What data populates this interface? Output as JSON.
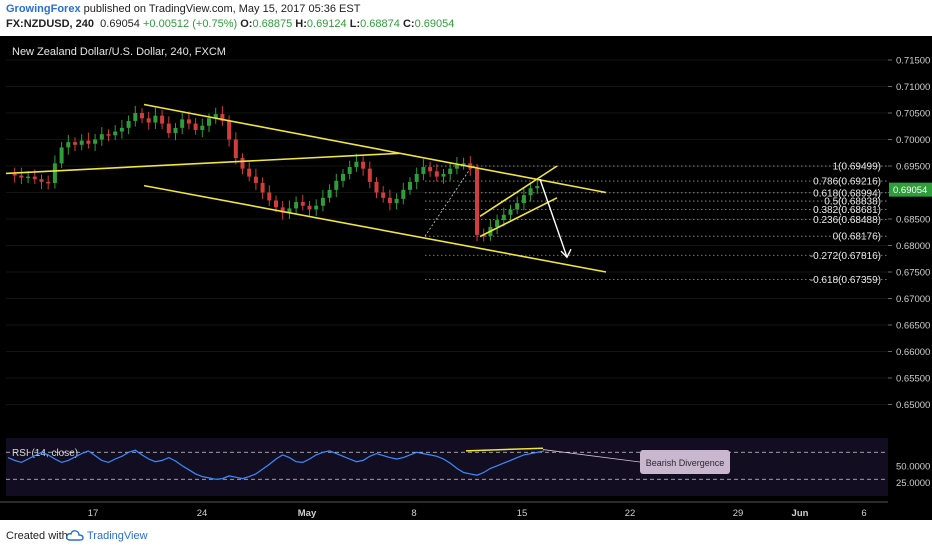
{
  "header": {
    "author": "GrowingForex",
    "published_text": " published on TradingView.com, May 15, 2017 05:36 EST",
    "symbol": "FX:NZDUSD, 240",
    "last": "0.69054",
    "change": "+0.00512 (+0.75%)",
    "o_label": "O:",
    "o_value": "0.68875",
    "h_label": "H:",
    "h_value": "0.69124",
    "l_label": "L:",
    "l_value": "0.68874",
    "c_label": "C:",
    "c_value": "0.69054"
  },
  "footer": {
    "created_with": "Created with",
    "brand": "TradingView"
  },
  "colors": {
    "background": "#000000",
    "up": "#2e9e3a",
    "down": "#d23c3c",
    "trendline": "#f0e53a",
    "rsi": "#3a8cff",
    "price_tag": "#2e9e3a"
  },
  "chart_data": {
    "type": "candlestick",
    "title": "New Zealand Dollar/U.S. Dollar, 240, FXCM",
    "ylim": [
      0.645,
      0.715
    ],
    "price_ticks": [
      "0.71500",
      "0.71000",
      "0.70500",
      "0.70000",
      "0.69500",
      "0.69000",
      "0.68500",
      "0.68000",
      "0.67500",
      "0.67000",
      "0.66500",
      "0.66000",
      "0.65500",
      "0.65000"
    ],
    "x_ticks": [
      "17",
      "24",
      "May",
      "8",
      "15",
      "22",
      "29",
      "Jun",
      "6"
    ],
    "current_price": "0.69054",
    "price_path": [
      0.6935,
      0.6932,
      0.6928,
      0.693,
      0.6925,
      0.692,
      0.6918,
      0.6955,
      0.6985,
      0.6995,
      0.699,
      0.6998,
      0.6992,
      0.7,
      0.701,
      0.7008,
      0.7015,
      0.7022,
      0.7035,
      0.705,
      0.704,
      0.7032,
      0.7045,
      0.703,
      0.7012,
      0.7022,
      0.7038,
      0.703,
      0.7018,
      0.7026,
      0.704,
      0.7048,
      0.7035,
      0.7,
      0.6965,
      0.6945,
      0.693,
      0.6918,
      0.69,
      0.6885,
      0.6872,
      0.6862,
      0.687,
      0.6882,
      0.6875,
      0.6868,
      0.6875,
      0.689,
      0.6905,
      0.6922,
      0.6935,
      0.6948,
      0.6958,
      0.6945,
      0.692,
      0.69,
      0.689,
      0.688,
      0.6888,
      0.6905,
      0.692,
      0.6935,
      0.6948,
      0.694,
      0.693,
      0.6935,
      0.6945,
      0.6952,
      0.6955,
      0.6945,
      0.682,
      0.6818,
      0.6835,
      0.6848,
      0.6858,
      0.6868,
      0.688,
      0.6895,
      0.6908,
      0.6912
    ],
    "fibonacci": [
      {
        "label": "1(0.69499)",
        "value": 0.69499
      },
      {
        "label": "0.786(0.69216)",
        "value": 0.69216
      },
      {
        "label": "0.618(0.68994)",
        "value": 0.68994
      },
      {
        "label": "0.5(0.68838)",
        "value": 0.68838
      },
      {
        "label": "0.382(0.68681)",
        "value": 0.68681
      },
      {
        "label": "0.236(0.68488)",
        "value": 0.68488
      },
      {
        "label": "0(0.68176)",
        "value": 0.68176
      },
      {
        "label": "-0.272(0.67816)",
        "value": 0.67816
      },
      {
        "label": "-0.618(0.67359)",
        "value": 0.67359
      }
    ],
    "rsi": {
      "label": "RSI (14, close)",
      "ticks": [
        "50.0000",
        "25.0000"
      ],
      "levels": [
        70,
        30
      ],
      "values": [
        62,
        58,
        55,
        60,
        65,
        70,
        66,
        60,
        55,
        58,
        63,
        68,
        72,
        65,
        58,
        55,
        60,
        64,
        70,
        73,
        66,
        60,
        56,
        58,
        62,
        57,
        50,
        44,
        38,
        34,
        32,
        30,
        31,
        35,
        33,
        31,
        34,
        38,
        45,
        52,
        60,
        66,
        62,
        56,
        55,
        60,
        66,
        70,
        72,
        68,
        64,
        60,
        56,
        58,
        64,
        68,
        65,
        62,
        60,
        62,
        66,
        70,
        68,
        66,
        64,
        60,
        54,
        46,
        40,
        38,
        36,
        40,
        46,
        50,
        54,
        58,
        62,
        66,
        68,
        70,
        72
      ],
      "annotation": "Bearish Divergence"
    }
  }
}
